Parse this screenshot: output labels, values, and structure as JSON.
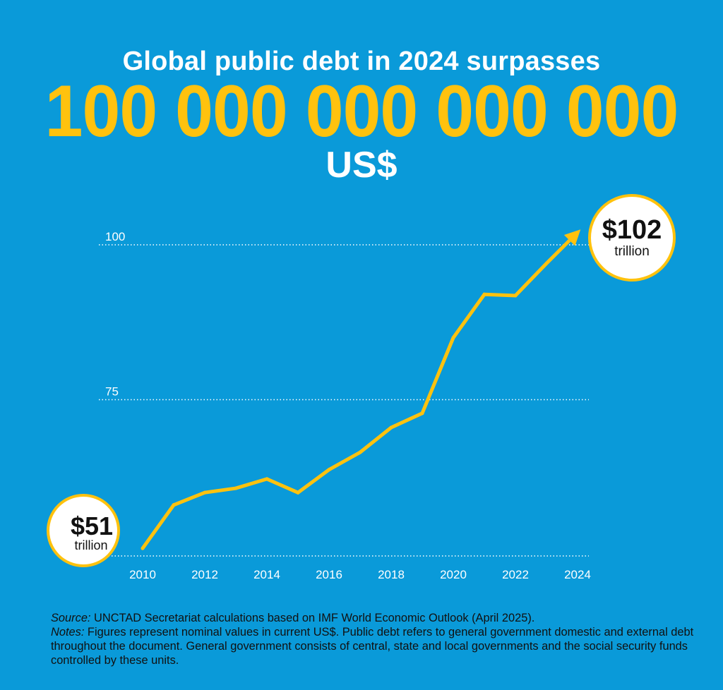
{
  "headline": "Global public debt in 2024 surpasses",
  "big_number": "100 000 000 000 000",
  "currency": "US$",
  "start_badge": {
    "value": "$51",
    "unit": "trillion"
  },
  "end_badge": {
    "value": "$102",
    "unit": "trillion"
  },
  "colors": {
    "background": "#0a9ad9",
    "line": "#ffc20e",
    "text": "#ffffff",
    "badge_fill": "#ffffff",
    "footer_text": "#111111"
  },
  "chart_data": {
    "type": "line",
    "title": "",
    "xlabel": "",
    "ylabel": "",
    "x": [
      2010,
      2011,
      2012,
      2013,
      2014,
      2015,
      2016,
      2017,
      2018,
      2019,
      2020,
      2021,
      2022,
      2023,
      2024
    ],
    "series": [
      {
        "values": [
          51,
          58,
          60,
          60.7,
          62.2,
          60,
          63.7,
          66.5,
          70.5,
          72.8,
          85,
          92,
          91.8,
          97,
          102
        ]
      }
    ],
    "xticks": [
      "2010",
      "2012",
      "2014",
      "2016",
      "2018",
      "2020",
      "2022",
      "2024"
    ],
    "yticks": [
      "75",
      "100"
    ],
    "xlim": [
      2010,
      2024
    ],
    "ylim": [
      50,
      100
    ],
    "grid": "horizontal dotted at 75 and 100",
    "end_arrow": true
  },
  "footer": {
    "source_label": "Source:",
    "source_text": " UNCTAD Secretariat calculations based on IMF World Economic Outlook (April 2025).",
    "notes_label": "Notes:",
    "notes_text": " Figures represent nominal values in current US$. Public debt refers to general government domestic and external debt throughout the document. General government consists of central, state and local governments and the social security funds controlled by these units."
  }
}
